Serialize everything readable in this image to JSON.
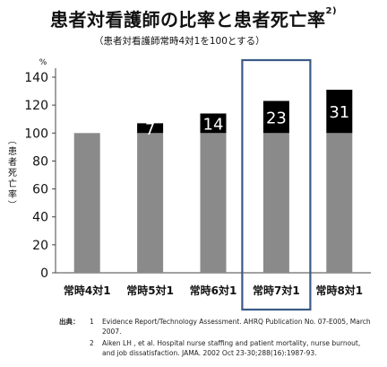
{
  "title": "患者対看護師の比率と患者死亡率",
  "title_superscript": "2)",
  "subtitle": "（患者対看護師常時4対1を100とする）",
  "chart_data": {
    "type": "bar",
    "categories": [
      "常時4対1",
      "常時5対1",
      "常時6対1",
      "常時7対1",
      "常時8対1"
    ],
    "series": [
      {
        "values": [
          100,
          100,
          100,
          100,
          100
        ],
        "color": "#8a8a8a"
      },
      {
        "values": [
          0,
          7,
          14,
          23,
          31
        ],
        "color": "#000000"
      }
    ],
    "data_labels": [
      "",
      "7",
      "14",
      "23",
      "31"
    ],
    "ylim": [
      0,
      140
    ],
    "yticks": [
      0,
      20,
      40,
      60,
      80,
      100,
      120,
      140
    ],
    "unit_label": "%",
    "ylabel": "（患者死亡率）",
    "highlight_category": "常時7対1",
    "highlight_color": "#3b5a87",
    "grid": false
  },
  "footnotes": {
    "heading": "出典：",
    "items": [
      {
        "num": "1",
        "text": "Evidence Report/Technology Assessment. AHRQ Publication No. 07-E005, March 2007."
      },
      {
        "num": "2",
        "text": "Aiken LH , et al. Hospital nurse staffing and patient mortality, nurse burnout, and job dissatisfaction. JAMA. 2002 Oct 23-30;288(16):1987-93."
      }
    ]
  }
}
